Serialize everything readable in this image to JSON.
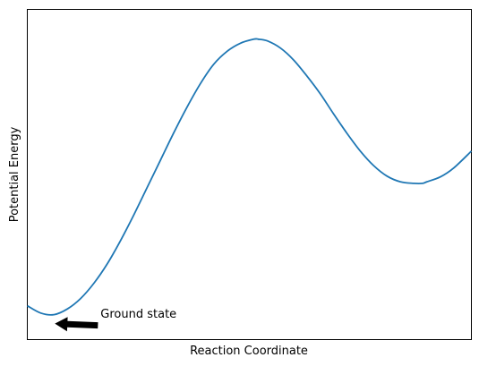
{
  "chart_data": {
    "type": "line",
    "title": "",
    "xlabel": "Reaction Coordinate",
    "ylabel": "Potential Energy",
    "xticks": [],
    "yticks": [],
    "grid": false,
    "legend": "none",
    "xlim": [
      0,
      10
    ],
    "ylim": [
      -1.7,
      2.4
    ],
    "series": [
      {
        "color": "#1f77b4",
        "x": [
          0.0,
          0.3,
          0.6,
          0.9,
          1.2,
          1.5,
          1.8,
          2.1,
          2.4,
          2.7,
          3.0,
          3.3,
          3.6,
          3.9,
          4.2,
          4.5,
          4.8,
          5.1,
          5.2,
          5.4,
          5.7,
          6.0,
          6.3,
          6.6,
          6.9,
          7.2,
          7.5,
          7.8,
          8.1,
          8.4,
          8.7,
          8.9,
          9.0,
          9.3,
          9.6,
          10.0
        ],
        "y": [
          -1.28,
          -1.37,
          -1.39,
          -1.32,
          -1.19,
          -1.0,
          -0.76,
          -0.47,
          -0.15,
          0.19,
          0.53,
          0.87,
          1.19,
          1.48,
          1.72,
          1.88,
          1.98,
          2.03,
          2.03,
          2.01,
          1.92,
          1.77,
          1.57,
          1.35,
          1.1,
          0.86,
          0.64,
          0.46,
          0.33,
          0.26,
          0.24,
          0.24,
          0.26,
          0.32,
          0.43,
          0.64
        ]
      }
    ],
    "annotations": [
      {
        "text": "Ground state",
        "x": 0.6,
        "y": -1.39,
        "text_x": 1.65,
        "text_y": -1.43
      }
    ]
  }
}
